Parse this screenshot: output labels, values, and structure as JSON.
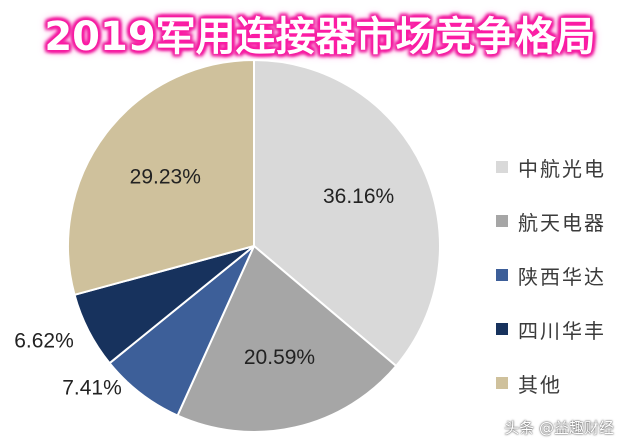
{
  "chart_data": {
    "type": "pie",
    "title": "2019军用连接器市场竞争格局",
    "legend_position": "right",
    "slices": [
      {
        "name": "中航光电",
        "value": 36.16,
        "label": "36.16%",
        "color": "#d9d9d9"
      },
      {
        "name": "航天电器",
        "value": 20.59,
        "label": "20.59%",
        "color": "#a6a6a6"
      },
      {
        "name": "陕西华达",
        "value": 7.41,
        "label": "7.41%",
        "color": "#3d5f99"
      },
      {
        "name": "四川华丰",
        "value": 6.62,
        "label": "6.62%",
        "color": "#17325d"
      },
      {
        "name": "其他",
        "value": 29.23,
        "label": "29.23%",
        "color": "#cfc19c"
      }
    ]
  },
  "watermark": "头条 @益趣财经"
}
